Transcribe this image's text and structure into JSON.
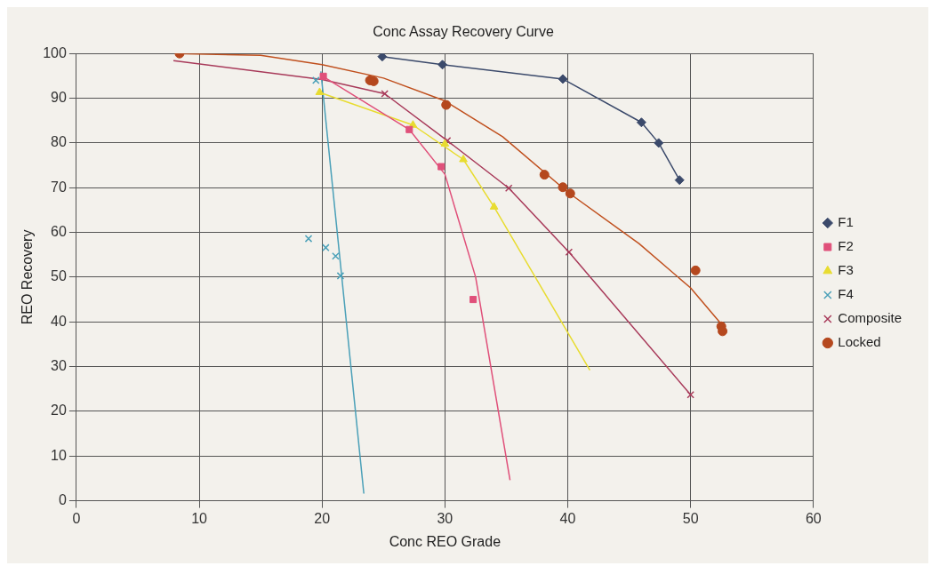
{
  "chart_data": {
    "type": "scatter",
    "title": "Conc Assay Recovery Curve",
    "xlabel": "Conc REO Grade",
    "ylabel": "REO Recovery",
    "xlim": [
      0,
      60
    ],
    "xticks": [
      0,
      10,
      20,
      30,
      40,
      50,
      60
    ],
    "ylim": [
      0,
      100
    ],
    "yticks": [
      0,
      10,
      20,
      30,
      40,
      50,
      60,
      70,
      80,
      90,
      100
    ],
    "grid": true,
    "legend": "right",
    "series": [
      {
        "name": "F1",
        "type": "line",
        "marker": "diamond",
        "color": "#3b4a6b",
        "x": [
          24.9,
          29.8,
          39.6,
          46.0,
          47.4,
          49.1
        ],
        "values": [
          99.3,
          97.5,
          94.3,
          84.6,
          80.0,
          71.7
        ]
      },
      {
        "name": "F2",
        "type": "scatter",
        "marker": "square",
        "color": "#e0507a",
        "x": [
          20.1,
          27.1,
          29.7,
          32.3
        ],
        "values": [
          94.9,
          83.0,
          74.7,
          45.0
        ]
      },
      {
        "name": "F3",
        "type": "scatter",
        "marker": "triangle",
        "color": "#e8dc30",
        "x": [
          19.8,
          27.4,
          30.0,
          31.5,
          34.0
        ],
        "values": [
          91.3,
          84.0,
          79.8,
          76.3,
          65.7
        ]
      },
      {
        "name": "F4",
        "type": "scatter",
        "marker": "cross",
        "color": "#4aa0b8",
        "x": [
          19.5,
          18.9,
          20.3,
          21.1,
          21.5
        ],
        "values": [
          94.0,
          58.6,
          56.6,
          54.7,
          50.3
        ]
      },
      {
        "name": "Composite",
        "type": "scatter",
        "marker": "cross",
        "color": "#a83a5a",
        "x": [
          25.1,
          30.2,
          35.2,
          40.1,
          50.0
        ],
        "values": [
          91.0,
          80.5,
          69.9,
          55.6,
          23.7
        ]
      },
      {
        "name": "Locked",
        "type": "scatter",
        "marker": "circle",
        "color": "#b5481e",
        "x": [
          8.4,
          23.9,
          24.2,
          30.1,
          38.1,
          39.6,
          40.2,
          50.4,
          52.5,
          52.6
        ],
        "values": [
          100.0,
          94.0,
          93.8,
          88.5,
          72.9,
          70.1,
          68.7,
          51.5,
          39.0,
          37.9
        ]
      },
      {
        "type": "line",
        "marker": "none",
        "color": "#e0507a",
        "x": [
          20.0,
          27.1,
          30.0,
          32.5,
          35.3
        ],
        "values": [
          95.0,
          83.0,
          73.0,
          50.0,
          4.6
        ]
      },
      {
        "type": "line",
        "marker": "none",
        "color": "#e8dc30",
        "x": [
          19.8,
          27.4,
          31.5,
          34.0,
          41.8
        ],
        "values": [
          91.3,
          84.0,
          76.3,
          65.7,
          29.2
        ]
      },
      {
        "type": "line",
        "marker": "none",
        "color": "#4aa0b8",
        "x": [
          19.9,
          23.4
        ],
        "values": [
          96.0,
          1.6
        ]
      },
      {
        "type": "line",
        "marker": "none",
        "color": "#a83a5a",
        "x": [
          7.9,
          20.0,
          25.1,
          30.2,
          35.2,
          40.1,
          50.0
        ],
        "values": [
          98.4,
          94.2,
          91.0,
          80.5,
          69.9,
          55.6,
          23.7
        ]
      },
      {
        "type": "line",
        "marker": "none",
        "color": "#c0501e",
        "x": [
          8.0,
          15.0,
          20.0,
          25.0,
          30.0,
          34.7,
          40.0,
          45.8,
          50.0,
          52.5,
          52.6
        ],
        "values": [
          100.0,
          99.6,
          97.5,
          94.5,
          89.4,
          81.4,
          69.0,
          57.5,
          47.6,
          39.5,
          38.2
        ]
      }
    ]
  }
}
